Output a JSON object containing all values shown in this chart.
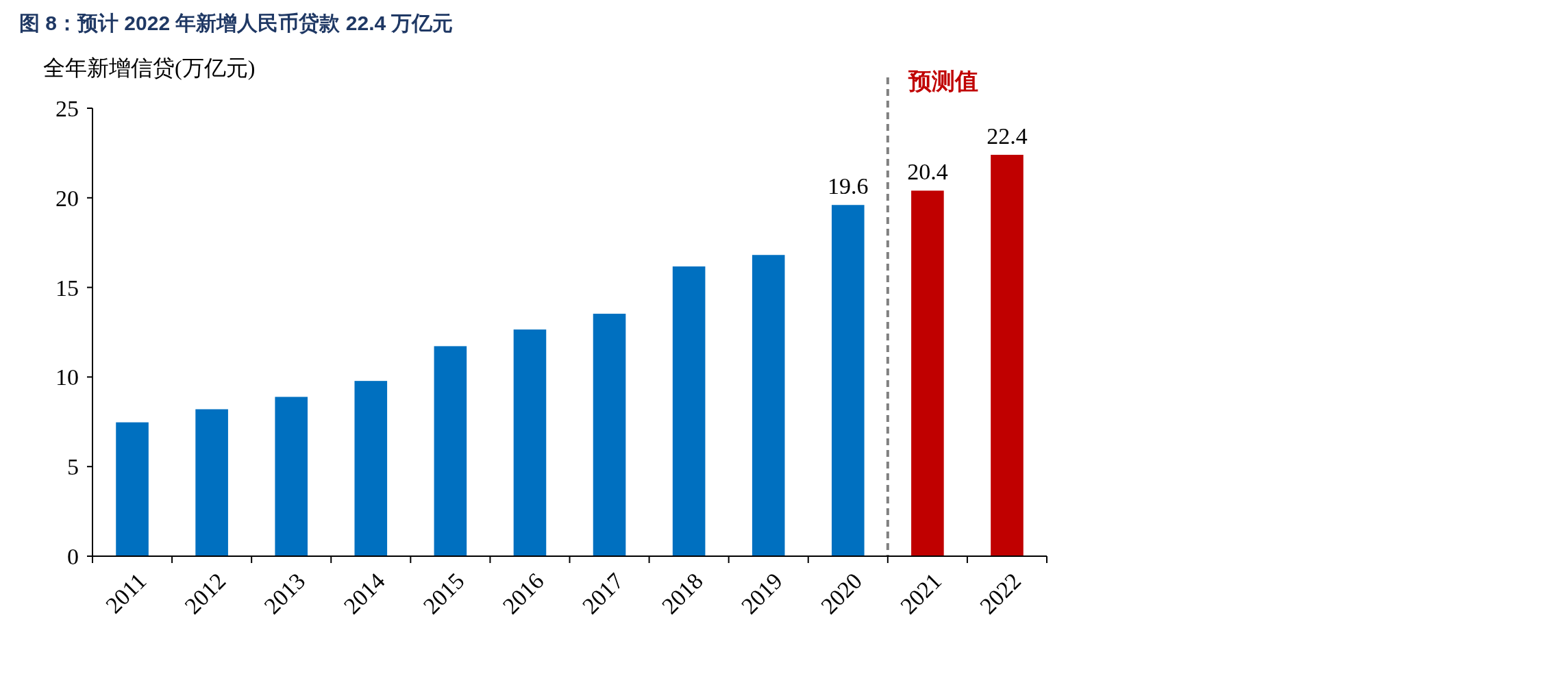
{
  "chart_data": {
    "type": "bar",
    "title": "图 8：预计 2022 年新增人民币贷款 22.4 万亿元",
    "ylabel": "全年新增信贷(万亿元)",
    "categories": [
      "2011",
      "2012",
      "2013",
      "2014",
      "2015",
      "2016",
      "2017",
      "2018",
      "2019",
      "2020",
      "2021",
      "2022"
    ],
    "values": [
      7.47,
      8.2,
      8.89,
      9.78,
      11.72,
      12.65,
      13.53,
      16.17,
      16.81,
      19.6,
      20.4,
      22.4
    ],
    "colors": [
      "#0070c0",
      "#0070c0",
      "#0070c0",
      "#0070c0",
      "#0070c0",
      "#0070c0",
      "#0070c0",
      "#0070c0",
      "#0070c0",
      "#0070c0",
      "#c00000",
      "#c00000"
    ],
    "value_labels": [
      null,
      null,
      null,
      null,
      null,
      null,
      null,
      null,
      null,
      "19.6",
      "20.4",
      "22.4"
    ],
    "ylim": [
      0,
      25
    ],
    "yticks": [
      0,
      5,
      10,
      15,
      20,
      25
    ],
    "grid": false,
    "annotations": [
      "预测值"
    ]
  }
}
